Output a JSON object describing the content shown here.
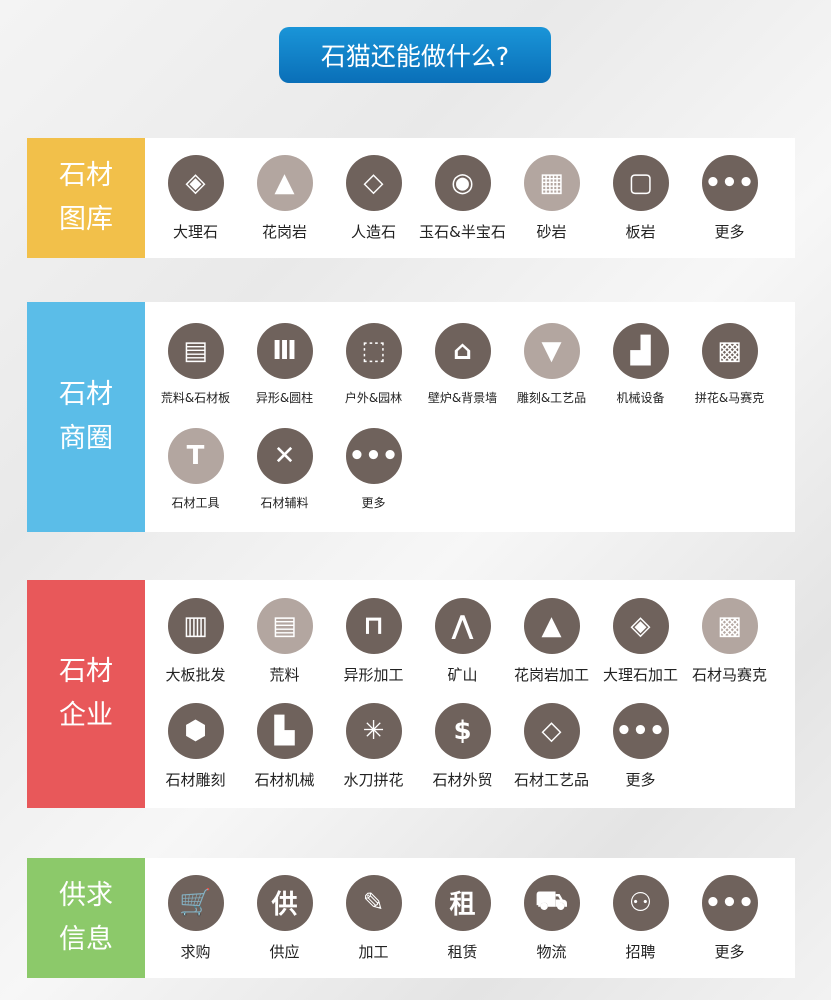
{
  "title": "石猫还能做什么?",
  "colors": {
    "icon_dark": "#6f625c",
    "icon_light": "#b3a6a0",
    "title_bg": "#0f83c9"
  },
  "sections": [
    {
      "tag": [
        "石材",
        "图库"
      ],
      "color": "#f2c04a",
      "items": [
        {
          "label": "大理石",
          "icon": "layers-icon",
          "glyph": "◈",
          "tone": "dark"
        },
        {
          "label": "花岗岩",
          "icon": "mountain-icon",
          "glyph": "▲",
          "tone": "light"
        },
        {
          "label": "人造石",
          "icon": "diamond-logo-icon",
          "glyph": "◇",
          "tone": "dark"
        },
        {
          "label": "玉石&半宝石",
          "icon": "gem-icon",
          "glyph": "◉",
          "tone": "dark"
        },
        {
          "label": "砂岩",
          "icon": "grid-tile-icon",
          "glyph": "▦",
          "tone": "light"
        },
        {
          "label": "板岩",
          "icon": "slab-icon",
          "glyph": "▢",
          "tone": "dark"
        },
        {
          "label": "更多",
          "icon": "more-icon",
          "glyph": "•••",
          "tone": "dark"
        }
      ]
    },
    {
      "tag": [
        "石材",
        "商圈"
      ],
      "color": "#5bbde8",
      "items": [
        {
          "label": "荒料&石材板",
          "icon": "bricks-icon",
          "glyph": "▤",
          "tone": "dark"
        },
        {
          "label": "异形&圆柱",
          "icon": "column-icon",
          "glyph": "Ⅲ",
          "tone": "dark"
        },
        {
          "label": "户外&园林",
          "icon": "cube-tree-icon",
          "glyph": "⬚",
          "tone": "dark"
        },
        {
          "label": "壁炉&背景墙",
          "icon": "building-icon",
          "glyph": "⌂",
          "tone": "dark"
        },
        {
          "label": "雕刻&工艺品",
          "icon": "chisel-icon",
          "glyph": "▼",
          "tone": "light"
        },
        {
          "label": "机械设备",
          "icon": "forklift-icon",
          "glyph": "▟",
          "tone": "dark"
        },
        {
          "label": "拼花&马赛克",
          "icon": "mosaic-icon",
          "glyph": "▩",
          "tone": "dark"
        },
        {
          "label": "石材工具",
          "icon": "hammer-icon",
          "glyph": "T",
          "tone": "light"
        },
        {
          "label": "石材辅料",
          "icon": "cross-arrows-icon",
          "glyph": "✕",
          "tone": "dark"
        },
        {
          "label": "更多",
          "icon": "more-icon",
          "glyph": "•••",
          "tone": "dark"
        }
      ]
    },
    {
      "tag": [
        "石材",
        "企业"
      ],
      "color": "#e8585a",
      "items": [
        {
          "label": "大板批发",
          "icon": "slabs-icon",
          "glyph": "▥",
          "tone": "dark"
        },
        {
          "label": "荒料",
          "icon": "bricks-icon",
          "glyph": "▤",
          "tone": "light"
        },
        {
          "label": "异形加工",
          "icon": "arch-icon",
          "glyph": "⊓",
          "tone": "dark"
        },
        {
          "label": "矿山",
          "icon": "mountain-icon",
          "glyph": "⋀",
          "tone": "dark"
        },
        {
          "label": "花岗岩加工",
          "icon": "mountain-icon",
          "glyph": "▲",
          "tone": "dark"
        },
        {
          "label": "大理石加工",
          "icon": "layers-icon",
          "glyph": "◈",
          "tone": "dark"
        },
        {
          "label": "石材马赛克",
          "icon": "mosaic-icon",
          "glyph": "▩",
          "tone": "light"
        },
        {
          "label": "石材雕刻",
          "icon": "cube-icon",
          "glyph": "⬢",
          "tone": "dark"
        },
        {
          "label": "石材机械",
          "icon": "bulldozer-icon",
          "glyph": "▙",
          "tone": "dark"
        },
        {
          "label": "水刀拼花",
          "icon": "burst-icon",
          "glyph": "✳",
          "tone": "dark"
        },
        {
          "label": "石材外贸",
          "icon": "dollar-icon",
          "glyph": "$",
          "tone": "dark"
        },
        {
          "label": "石材工艺品",
          "icon": "diamond-logo-icon",
          "glyph": "◇",
          "tone": "dark"
        },
        {
          "label": "更多",
          "icon": "more-icon",
          "glyph": "•••",
          "tone": "dark"
        }
      ]
    },
    {
      "tag": [
        "供求",
        "信息"
      ],
      "color": "#8cc96a",
      "items": [
        {
          "label": "求购",
          "icon": "cart-icon",
          "glyph": "🛒",
          "tone": "dark"
        },
        {
          "label": "供应",
          "icon": "supply-user-icon",
          "glyph": "供",
          "tone": "dark"
        },
        {
          "label": "加工",
          "icon": "ruler-pencil-icon",
          "glyph": "✎",
          "tone": "dark"
        },
        {
          "label": "租赁",
          "icon": "clipboard-icon",
          "glyph": "租",
          "tone": "dark"
        },
        {
          "label": "物流",
          "icon": "truck-icon",
          "glyph": "⛟",
          "tone": "dark"
        },
        {
          "label": "招聘",
          "icon": "add-user-icon",
          "glyph": "⚇",
          "tone": "dark"
        },
        {
          "label": "更多",
          "icon": "more-icon",
          "glyph": "•••",
          "tone": "dark"
        }
      ]
    }
  ]
}
